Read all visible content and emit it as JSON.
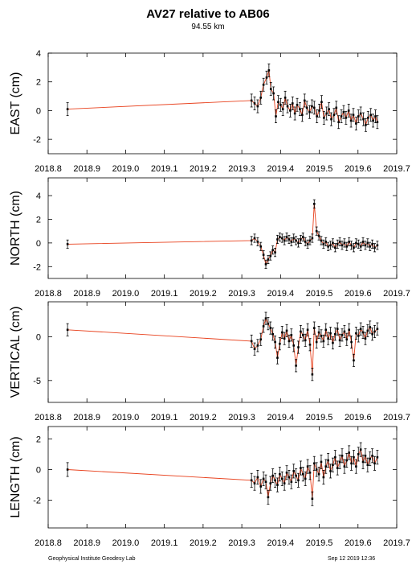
{
  "header": {
    "title": "AV27 relative to AB06",
    "subtitle": "94.55 km"
  },
  "footer": {
    "left": "Geophysical Institute Geodesy Lab",
    "right": "Sep 12 2019 12:36"
  },
  "colors": {
    "line": "#e8401c",
    "marker": "#000000",
    "frame": "#000000"
  },
  "chart_data": [
    {
      "type": "line",
      "ylabel": "EAST (cm)",
      "xlim": [
        2018.8,
        2019.7
      ],
      "ylim": [
        -3,
        4
      ],
      "xticks": [
        2018.8,
        2018.9,
        2019.0,
        2019.1,
        2019.2,
        2019.3,
        2019.4,
        2019.5,
        2019.6,
        2019.7
      ],
      "yticks": [
        -2,
        0,
        2,
        4
      ],
      "error_bar": 0.45,
      "x": [
        2018.85,
        2019.325,
        2019.333,
        2019.341,
        2019.349,
        2019.356,
        2019.364,
        2019.37,
        2019.375,
        2019.382,
        2019.388,
        2019.394,
        2019.4,
        2019.406,
        2019.412,
        2019.418,
        2019.425,
        2019.431,
        2019.437,
        2019.443,
        2019.45,
        2019.456,
        2019.462,
        2019.468,
        2019.475,
        2019.481,
        2019.487,
        2019.494,
        2019.5,
        2019.506,
        2019.512,
        2019.519,
        2019.525,
        2019.531,
        2019.538,
        2019.544,
        2019.55,
        2019.557,
        2019.563,
        2019.569,
        2019.576,
        2019.582,
        2019.588,
        2019.595,
        2019.601,
        2019.607,
        2019.614,
        2019.62,
        2019.626,
        2019.633,
        2019.639,
        2019.645,
        2019.65
      ],
      "y": [
        0.1,
        0.7,
        0.5,
        0.3,
        0.9,
        1.8,
        2.3,
        2.8,
        1.5,
        1.2,
        -0.4,
        0.6,
        0.4,
        0.1,
        0.9,
        0.3,
        0.0,
        0.5,
        -0.2,
        0.4,
        0.1,
        -0.3,
        0.7,
        0.2,
        -0.1,
        0.3,
        0.2,
        -0.4,
        0.0,
        0.6,
        -0.5,
        -0.2,
        0.1,
        -0.6,
        -0.3,
        0.2,
        -0.8,
        -0.4,
        -0.1,
        -0.5,
        0.0,
        -0.7,
        -0.3,
        -0.9,
        -0.4,
        -0.2,
        -0.6,
        -1.0,
        -0.5,
        -0.3,
        -0.7,
        -0.4,
        -0.8
      ]
    },
    {
      "type": "line",
      "ylabel": "NORTH (cm)",
      "xlim": [
        2018.8,
        2019.7
      ],
      "ylim": [
        -3,
        5.5
      ],
      "xticks": [
        2018.8,
        2018.9,
        2019.0,
        2019.1,
        2019.2,
        2019.3,
        2019.4,
        2019.5,
        2019.6,
        2019.7
      ],
      "yticks": [
        -2,
        0,
        2,
        4
      ],
      "error_bar": 0.35,
      "x": [
        2018.85,
        2019.325,
        2019.333,
        2019.341,
        2019.349,
        2019.356,
        2019.362,
        2019.368,
        2019.374,
        2019.38,
        2019.386,
        2019.392,
        2019.398,
        2019.404,
        2019.41,
        2019.416,
        2019.422,
        2019.428,
        2019.434,
        2019.44,
        2019.446,
        2019.452,
        2019.458,
        2019.464,
        2019.47,
        2019.476,
        2019.482,
        2019.487,
        2019.493,
        2019.499,
        2019.505,
        2019.511,
        2019.517,
        2019.523,
        2019.529,
        2019.535,
        2019.541,
        2019.547,
        2019.553,
        2019.559,
        2019.565,
        2019.571,
        2019.577,
        2019.583,
        2019.589,
        2019.595,
        2019.601,
        2019.607,
        2019.613,
        2019.619,
        2019.625,
        2019.631,
        2019.637,
        2019.643,
        2019.65
      ],
      "y": [
        -0.1,
        0.2,
        0.4,
        0.1,
        -0.3,
        -1.0,
        -1.8,
        -1.4,
        -1.1,
        -0.6,
        -0.8,
        0.3,
        0.5,
        0.4,
        0.2,
        0.5,
        0.3,
        0.1,
        0.4,
        0.2,
        0.0,
        0.3,
        0.5,
        0.1,
        -0.1,
        0.2,
        0.4,
        3.3,
        1.0,
        0.6,
        0.2,
        -0.1,
        0.1,
        -0.3,
        -0.2,
        0.0,
        -0.4,
        -0.1,
        0.1,
        -0.2,
        0.0,
        -0.3,
        0.1,
        -0.2,
        -0.4,
        0.0,
        -0.1,
        -0.3,
        0.1,
        -0.2,
        0.0,
        -0.3,
        -0.1,
        -0.4,
        -0.2
      ]
    },
    {
      "type": "line",
      "ylabel": "VERTICAL (cm)",
      "xlim": [
        2018.8,
        2019.7
      ],
      "ylim": [
        -7.5,
        4
      ],
      "xticks": [
        2018.8,
        2018.9,
        2019.0,
        2019.1,
        2019.2,
        2019.3,
        2019.4,
        2019.5,
        2019.6,
        2019.7
      ],
      "yticks": [
        -5,
        0
      ],
      "error_bar": 0.7,
      "x": [
        2018.85,
        2019.325,
        2019.333,
        2019.341,
        2019.349,
        2019.356,
        2019.362,
        2019.368,
        2019.374,
        2019.38,
        2019.386,
        2019.392,
        2019.398,
        2019.404,
        2019.41,
        2019.416,
        2019.422,
        2019.428,
        2019.434,
        2019.44,
        2019.446,
        2019.452,
        2019.458,
        2019.464,
        2019.47,
        2019.476,
        2019.482,
        2019.487,
        2019.493,
        2019.499,
        2019.505,
        2019.511,
        2019.517,
        2019.523,
        2019.529,
        2019.535,
        2019.541,
        2019.547,
        2019.553,
        2019.559,
        2019.565,
        2019.571,
        2019.577,
        2019.583,
        2019.589,
        2019.595,
        2019.601,
        2019.607,
        2019.613,
        2019.619,
        2019.625,
        2019.631,
        2019.637,
        2019.643,
        2019.65
      ],
      "y": [
        0.8,
        -0.5,
        -1.4,
        -1.0,
        -0.3,
        1.2,
        2.1,
        1.5,
        1.0,
        0.3,
        -0.6,
        -2.4,
        -0.8,
        0.5,
        -0.2,
        0.7,
        -0.5,
        0.2,
        -1.0,
        -3.3,
        -1.2,
        0.6,
        0.2,
        -0.4,
        0.8,
        -0.9,
        -4.3,
        1.0,
        -0.6,
        0.5,
        0.1,
        -0.5,
        0.8,
        -0.2,
        0.4,
        -0.7,
        0.3,
        0.9,
        -0.4,
        0.2,
        0.6,
        -0.3,
        0.8,
        -0.6,
        -2.7,
        0.4,
        0.1,
        0.9,
        0.5,
        -0.2,
        0.7,
        1.1,
        0.3,
        0.6,
        0.9
      ]
    },
    {
      "type": "line",
      "ylabel": "LENGTH (cm)",
      "xlim": [
        2018.8,
        2019.7
      ],
      "ylim": [
        -3.8,
        2.8
      ],
      "xticks": [
        2018.8,
        2018.9,
        2019.0,
        2019.1,
        2019.2,
        2019.3,
        2019.4,
        2019.5,
        2019.6,
        2019.7
      ],
      "yticks": [
        -2,
        0,
        2
      ],
      "error_bar": 0.45,
      "x": [
        2018.85,
        2019.325,
        2019.333,
        2019.341,
        2019.349,
        2019.356,
        2019.362,
        2019.368,
        2019.374,
        2019.38,
        2019.386,
        2019.392,
        2019.398,
        2019.404,
        2019.41,
        2019.416,
        2019.422,
        2019.428,
        2019.434,
        2019.44,
        2019.446,
        2019.452,
        2019.458,
        2019.464,
        2019.47,
        2019.476,
        2019.482,
        2019.487,
        2019.493,
        2019.499,
        2019.505,
        2019.511,
        2019.517,
        2019.523,
        2019.529,
        2019.535,
        2019.541,
        2019.547,
        2019.553,
        2019.559,
        2019.565,
        2019.571,
        2019.577,
        2019.583,
        2019.589,
        2019.595,
        2019.601,
        2019.607,
        2019.613,
        2019.619,
        2019.625,
        2019.631,
        2019.637,
        2019.643,
        2019.65
      ],
      "y": [
        0.0,
        -0.7,
        -0.9,
        -0.5,
        -1.1,
        -0.6,
        -0.8,
        -1.8,
        -0.9,
        -0.4,
        -0.7,
        -1.0,
        -0.3,
        -0.6,
        -0.9,
        -0.2,
        -0.5,
        -0.8,
        -0.1,
        -0.4,
        -0.7,
        0.1,
        -0.3,
        -0.6,
        0.2,
        -0.2,
        -1.9,
        0.4,
        0.0,
        -0.3,
        0.5,
        -0.5,
        0.2,
        0.6,
        -0.1,
        0.3,
        0.8,
        0.1,
        0.5,
        0.9,
        0.2,
        0.6,
        1.1,
        0.4,
        0.8,
        0.2,
        1.0,
        1.3,
        0.5,
        0.9,
        0.3,
        0.7,
        0.9,
        0.4,
        0.8
      ]
    }
  ]
}
